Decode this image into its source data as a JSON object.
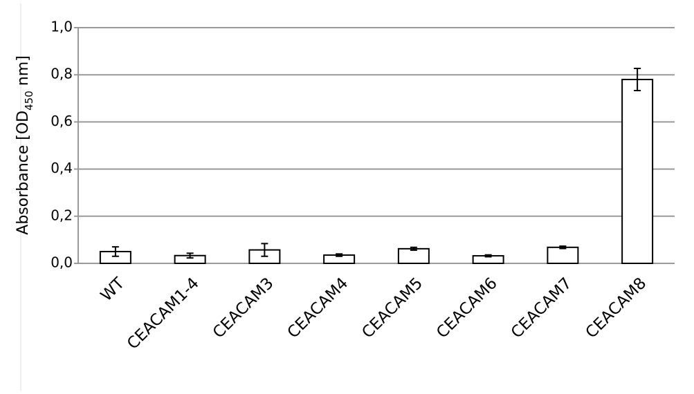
{
  "chart_data": {
    "type": "bar",
    "y_label": [
      "Absorbance [OD",
      "450",
      " nm]"
    ],
    "categories": [
      "WT",
      "CEACAM1-4",
      "CEACAM3",
      "CEACAM4",
      "CEACAM5",
      "CEACAM6",
      "CEACAM7",
      "CEACAM8"
    ],
    "values": [
      0.05,
      0.033,
      0.057,
      0.035,
      0.062,
      0.032,
      0.068,
      0.78
    ],
    "errors": [
      0.02,
      0.01,
      0.027,
      0.005,
      0.006,
      0.004,
      0.005,
      0.047
    ],
    "color": "#ffffff",
    "ylim": [
      0,
      1.0
    ],
    "yticks": [
      {
        "value": 0,
        "label": "0,0"
      },
      {
        "value": 0.2,
        "label": "0,2"
      },
      {
        "value": 0.4,
        "label": "0,4"
      },
      {
        "value": 0.6,
        "label": "0,6"
      },
      {
        "value": 0.8,
        "label": "0,8"
      },
      {
        "value": 1.0,
        "label": "1,0"
      }
    ],
    "grid": true
  }
}
